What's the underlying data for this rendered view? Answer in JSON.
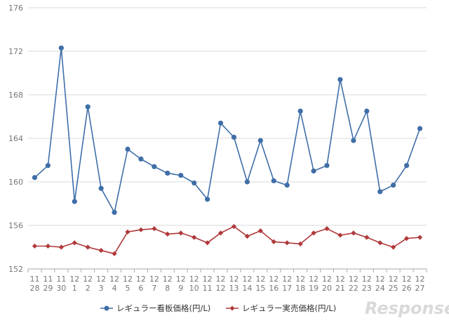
{
  "chart_data": {
    "type": "line",
    "categories": [
      [
        "11",
        "28"
      ],
      [
        "11",
        "29"
      ],
      [
        "11",
        "30"
      ],
      [
        "12",
        "1"
      ],
      [
        "12",
        "2"
      ],
      [
        "12",
        "3"
      ],
      [
        "12",
        "4"
      ],
      [
        "12",
        "5"
      ],
      [
        "12",
        "6"
      ],
      [
        "12",
        "7"
      ],
      [
        "12",
        "8"
      ],
      [
        "12",
        "9"
      ],
      [
        "12",
        "10"
      ],
      [
        "12",
        "11"
      ],
      [
        "12",
        "12"
      ],
      [
        "12",
        "13"
      ],
      [
        "12",
        "14"
      ],
      [
        "12",
        "15"
      ],
      [
        "12",
        "16"
      ],
      [
        "12",
        "17"
      ],
      [
        "12",
        "18"
      ],
      [
        "12",
        "19"
      ],
      [
        "12",
        "20"
      ],
      [
        "12",
        "21"
      ],
      [
        "12",
        "22"
      ],
      [
        "12",
        "23"
      ],
      [
        "12",
        "24"
      ],
      [
        "12",
        "25"
      ],
      [
        "12",
        "26"
      ],
      [
        "12",
        "27"
      ]
    ],
    "series": [
      {
        "name": "レギュラー看板価格(円/L)",
        "color": "#3f6ea8",
        "marker": "circle",
        "values": [
          160.4,
          161.5,
          172.3,
          158.2,
          166.9,
          159.4,
          157.2,
          163.0,
          162.1,
          161.4,
          160.8,
          160.6,
          159.9,
          158.4,
          165.4,
          164.1,
          160.0,
          163.8,
          160.1,
          159.7,
          166.5,
          161.0,
          161.5,
          169.4,
          163.8,
          166.5,
          159.1,
          159.7,
          161.5,
          164.9
        ]
      },
      {
        "name": "レギュラー実売価格(円/L)",
        "color": "#b0393b",
        "marker": "diamond",
        "values": [
          154.1,
          154.1,
          154.0,
          154.4,
          154.0,
          153.7,
          153.4,
          155.4,
          155.6,
          155.7,
          155.2,
          155.3,
          154.9,
          154.4,
          155.3,
          155.9,
          155.0,
          155.5,
          154.5,
          154.4,
          154.3,
          155.3,
          155.7,
          155.1,
          155.3,
          154.9,
          154.4,
          154.0,
          154.8,
          154.9
        ]
      }
    ],
    "ylim": [
      152,
      176
    ],
    "yticks": [
      152,
      156,
      160,
      164,
      168,
      172,
      176
    ],
    "grid": true,
    "legend": "bottom-center"
  },
  "watermark": "Response."
}
